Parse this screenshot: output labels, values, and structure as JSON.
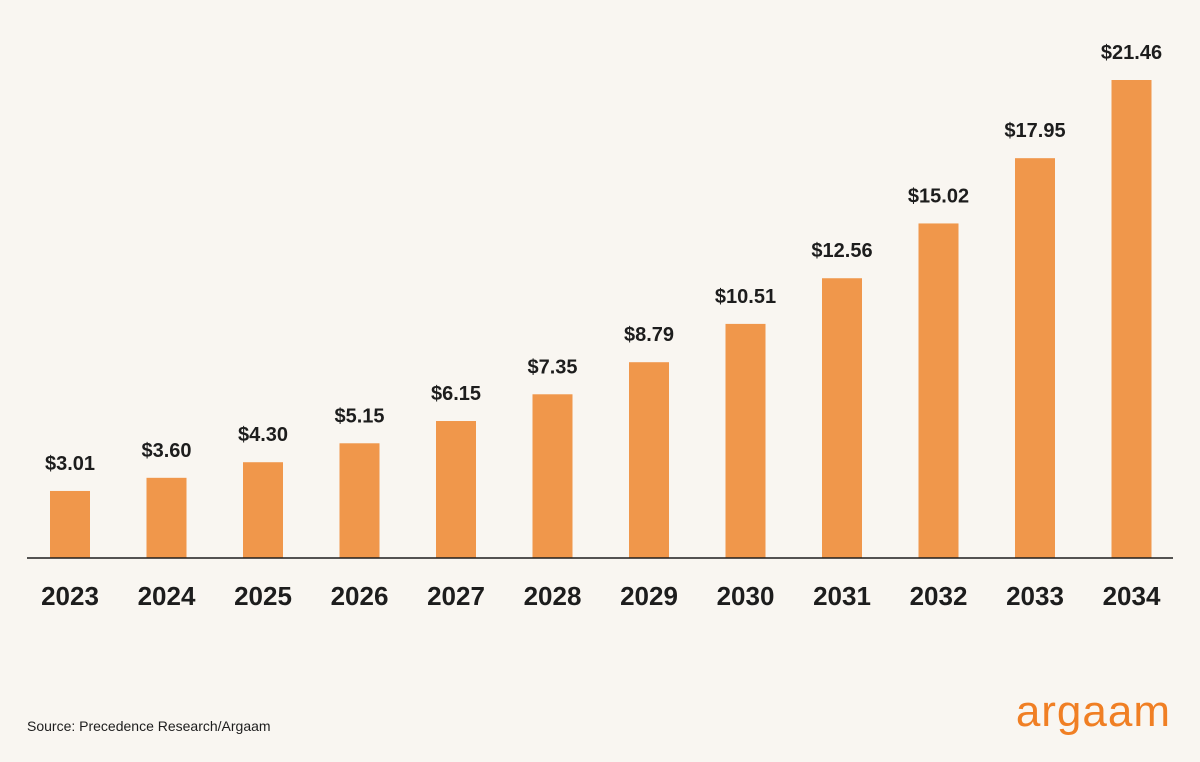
{
  "chart_data": {
    "type": "bar",
    "categories": [
      "2023",
      "2024",
      "2025",
      "2026",
      "2027",
      "2028",
      "2029",
      "2030",
      "2031",
      "2032",
      "2033",
      "2034"
    ],
    "values": [
      3.01,
      3.6,
      4.3,
      5.15,
      6.15,
      7.35,
      8.79,
      10.51,
      12.56,
      15.02,
      17.95,
      21.46
    ],
    "data_labels": [
      "$3.01",
      "$3.60",
      "$4.30",
      "$5.15",
      "$6.15",
      "$7.35",
      "$8.79",
      "$10.51",
      "$12.56",
      "$15.02",
      "$17.95",
      "$21.46"
    ],
    "title": "",
    "xlabel": "",
    "ylabel": "",
    "ylim": [
      0,
      21.46
    ],
    "grid": false,
    "colors": {
      "bar": "#f0974b",
      "text": "#1d1d1d",
      "background": "#f9f6f1"
    }
  },
  "footer": {
    "source": "Source: Precedence Research/Argaam",
    "logo_text": "argaam",
    "logo_color": "#f07f24"
  }
}
